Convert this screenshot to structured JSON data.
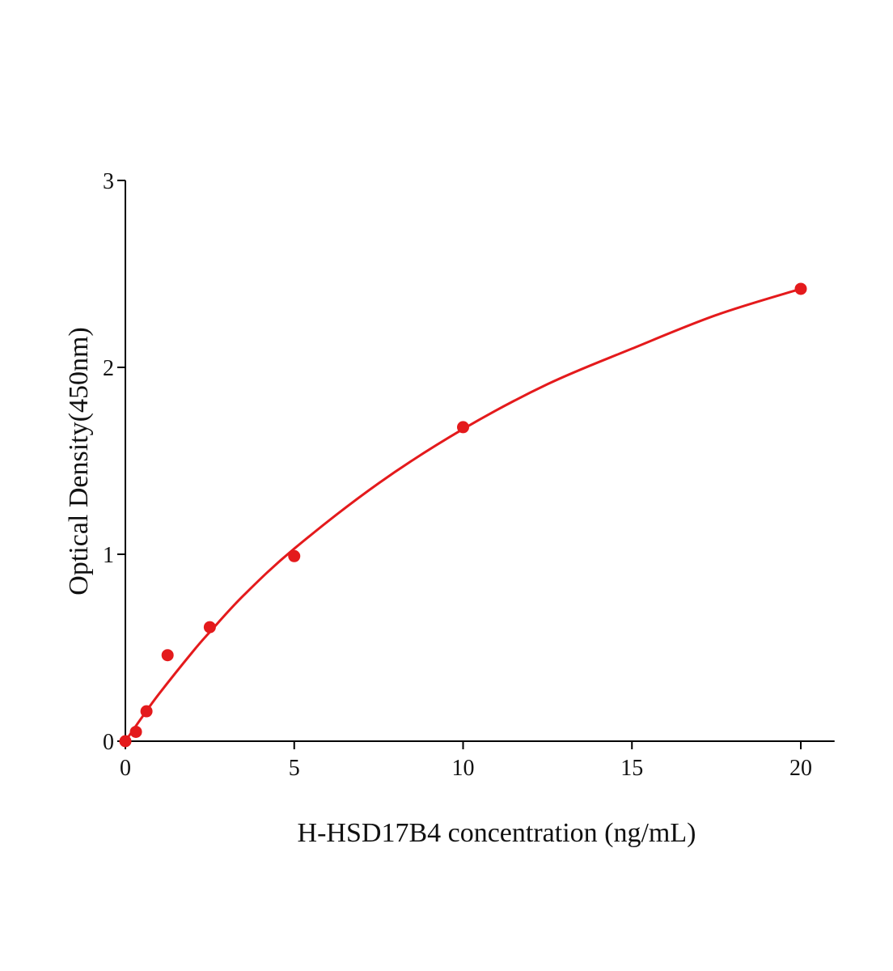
{
  "chart_data": {
    "type": "scatter",
    "title": "",
    "xlabel": "H-HSD17B4 concentration (ng/mL)",
    "ylabel": "Optical Density(450nm)",
    "xlim": [
      0,
      21
    ],
    "ylim": [
      0,
      3
    ],
    "xticks": [
      0,
      5,
      10,
      15,
      20
    ],
    "yticks": [
      0,
      1,
      2,
      3
    ],
    "grid": false,
    "color": "#e41a1c",
    "series": [
      {
        "x": [
          0,
          0.3125,
          0.625,
          1.25,
          2.5,
          5,
          10,
          20
        ],
        "y": [
          0,
          0.05,
          0.16,
          0.46,
          0.61,
          0.99,
          1.68,
          2.42
        ]
      }
    ],
    "fit_curve": {
      "x": [
        0,
        0.5,
        1,
        2,
        2.5,
        3.5,
        5,
        7.5,
        10,
        12.5,
        15,
        17.5,
        20
      ],
      "y": [
        0,
        0.13,
        0.254,
        0.48,
        0.584,
        0.78,
        1.03,
        1.38,
        1.67,
        1.91,
        2.1,
        2.28,
        2.42
      ]
    }
  }
}
